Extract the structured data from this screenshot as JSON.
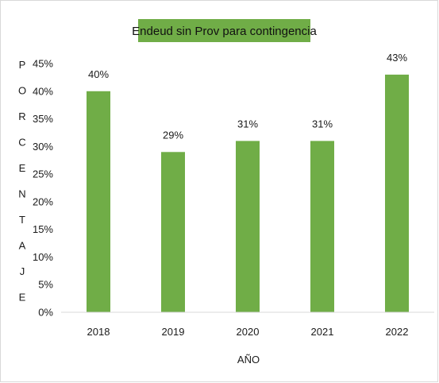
{
  "chart_data": {
    "type": "bar",
    "title": "Endeud sin Prov para contingencia",
    "xlabel": "AÑO",
    "ylabel": "PORCENTAJE",
    "categories": [
      "2018",
      "2019",
      "2020",
      "2021",
      "2022"
    ],
    "values": [
      40,
      29,
      31,
      31,
      43
    ],
    "data_labels": [
      "40%",
      "29%",
      "31%",
      "31%",
      "43%"
    ],
    "y_ticks": [
      "0%",
      "5%",
      "10%",
      "15%",
      "20%",
      "25%",
      "30%",
      "35%",
      "40%",
      "45%"
    ],
    "ylim": [
      0,
      45
    ],
    "grid": false,
    "bar_color": "#70AD47",
    "title_background": "#70AD47"
  }
}
